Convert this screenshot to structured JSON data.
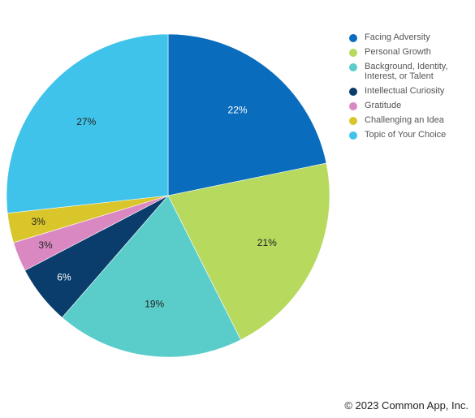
{
  "chart_data": {
    "type": "pie",
    "title": "",
    "slices": [
      {
        "label": "Facing Adversity",
        "value": 22,
        "value_label": "22%",
        "color": "#0a6cbc"
      },
      {
        "label": "Personal Growth",
        "value": 21,
        "value_label": "21%",
        "color": "#b6d95e"
      },
      {
        "label": "Background, Identity, Interest, or Talent",
        "value": 19,
        "value_label": "19%",
        "color": "#5acdca"
      },
      {
        "label": "Intellectual Curiosity",
        "value": 6,
        "value_label": "6%",
        "color": "#0a3d6b"
      },
      {
        "label": "Gratitude",
        "value": 3,
        "value_label": "3%",
        "color": "#da88c2"
      },
      {
        "label": "Challenging an Idea",
        "value": 3,
        "value_label": "3%",
        "color": "#d9c62a"
      },
      {
        "label": "Topic of Your Choice",
        "value": 27,
        "value_label": "27%",
        "color": "#40c3ea"
      }
    ],
    "legend_position": "top-right",
    "label_colors": [
      "#ffffff",
      "#222222",
      "#222222",
      "#ffffff",
      "#222222",
      "#222222",
      "#222222"
    ]
  },
  "footer": {
    "copyright": "© 2023 Common App, Inc."
  }
}
